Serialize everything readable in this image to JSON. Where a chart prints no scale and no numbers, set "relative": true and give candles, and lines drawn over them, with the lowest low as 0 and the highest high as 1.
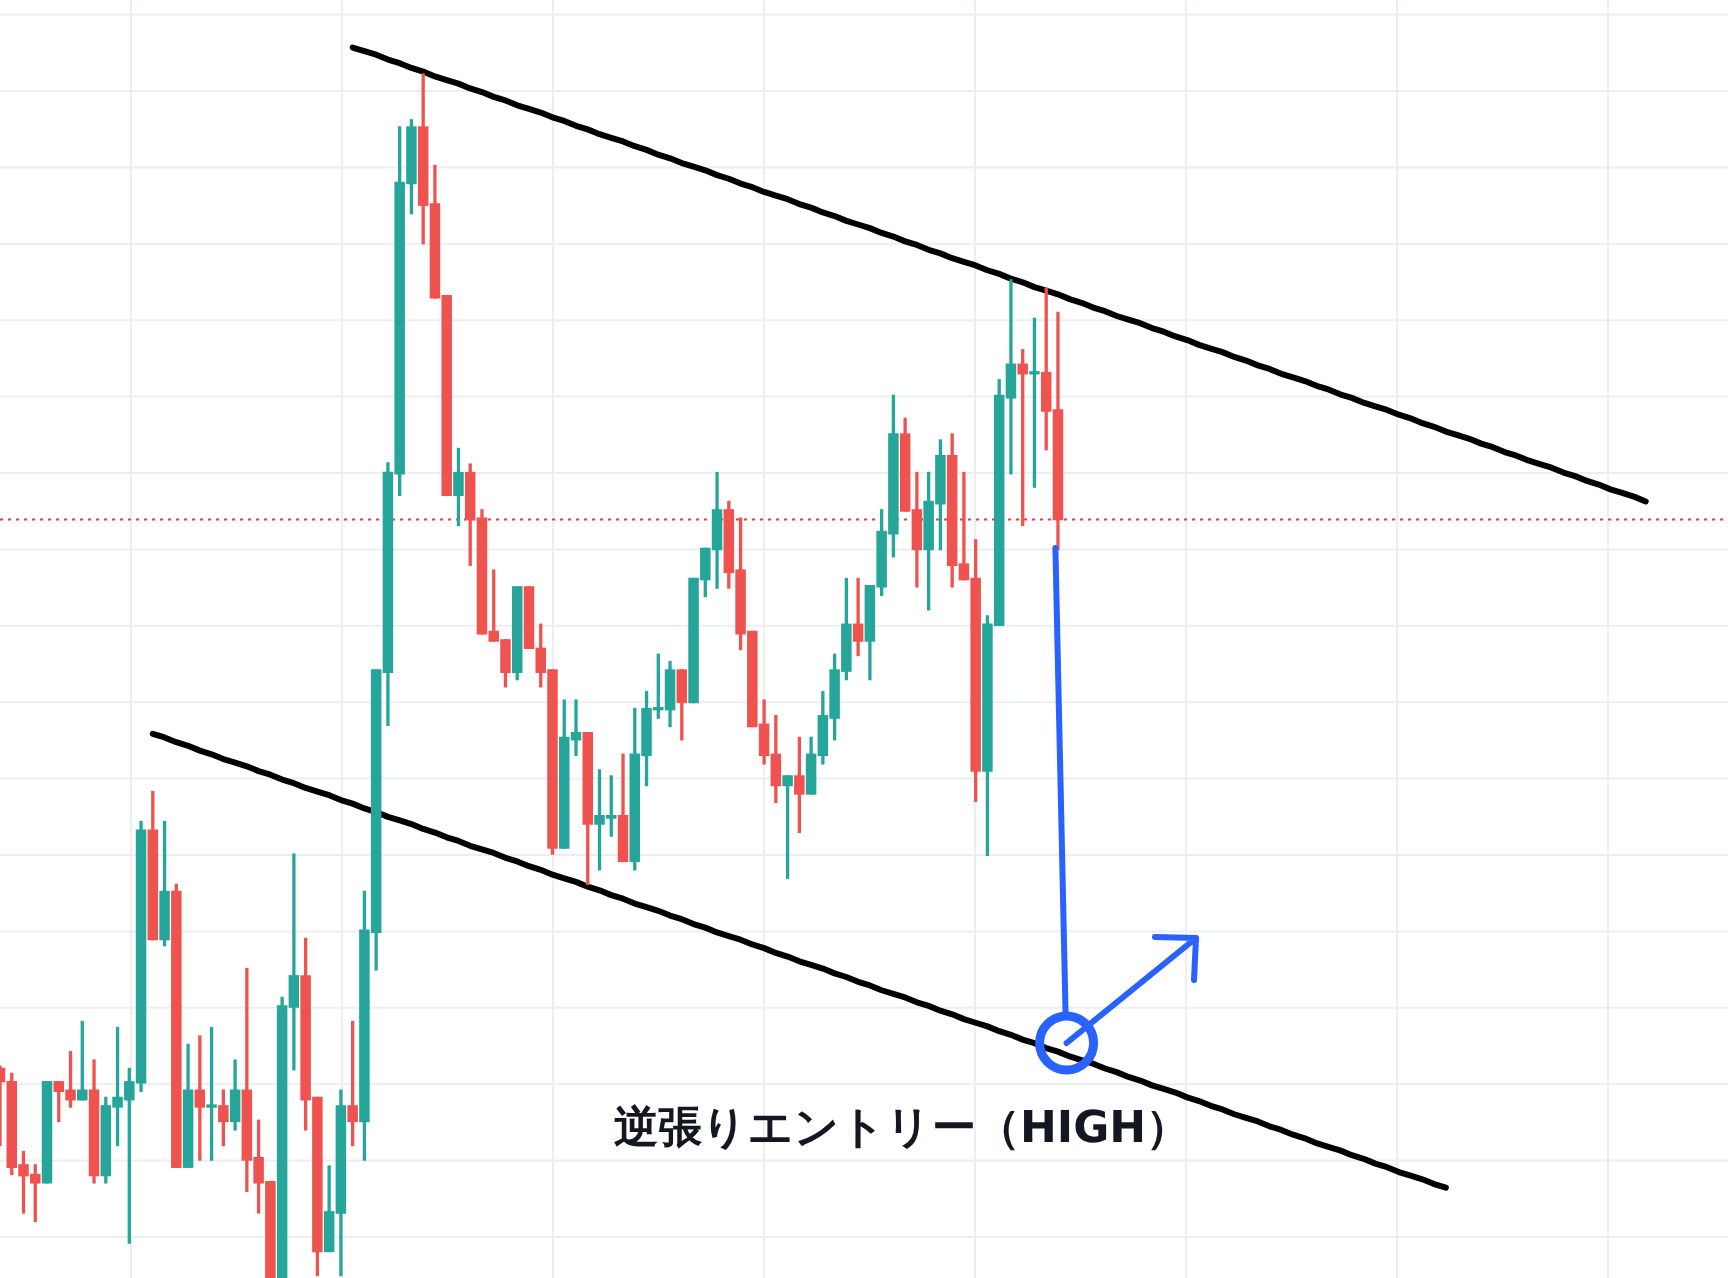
{
  "chart_data": {
    "type": "candlestick",
    "relative": true,
    "grid": true,
    "categories": [
      null,
      null,
      null,
      null,
      null,
      null,
      null,
      null,
      null,
      null,
      null,
      null,
      null,
      null,
      null,
      null,
      null,
      null,
      null,
      null,
      null,
      null,
      null,
      null,
      null,
      null,
      null,
      null,
      null,
      null,
      null,
      null,
      null,
      null,
      null,
      null,
      null,
      null,
      null,
      null,
      null,
      null,
      null,
      null,
      null,
      null,
      null,
      null,
      null,
      null,
      null,
      null,
      null,
      null,
      null,
      null,
      null,
      null,
      null,
      null,
      null,
      null,
      null,
      null,
      null,
      null,
      null,
      null,
      null,
      null,
      null,
      null,
      null,
      null,
      null,
      null,
      null,
      null,
      null,
      null,
      null,
      null,
      null,
      null,
      null,
      null,
      null,
      null,
      null,
      null,
      null,
      null,
      null,
      null,
      null,
      null,
      null,
      null,
      null,
      null,
      null,
      null,
      null,
      null,
      null,
      null,
      null,
      null,
      null,
      null,
      null,
      null,
      null,
      null,
      null,
      null,
      null,
      null,
      null,
      null,
      null,
      null,
      null,
      null,
      null,
      null,
      null,
      null,
      null,
      null,
      null,
      null,
      null,
      null,
      null,
      null,
      null,
      null,
      null,
      null,
      null,
      null,
      null,
      null,
      null,
      null,
      null,
      null
    ],
    "ohlc": [
      [
        0.174,
        0.176,
        0.11,
        0.163
      ],
      [
        0.163,
        0.17,
        0.086,
        0.092
      ],
      [
        0.094,
        0.105,
        0.054,
        0.085
      ],
      [
        0.086,
        0.094,
        0.047,
        0.079
      ],
      [
        0.079,
        0.163,
        0.079,
        0.163
      ],
      [
        0.163,
        0.163,
        0.13,
        0.155
      ],
      [
        0.156,
        0.188,
        0.142,
        0.148
      ],
      [
        0.148,
        0.213,
        0.148,
        0.156
      ],
      [
        0.156,
        0.181,
        0.079,
        0.085
      ],
      [
        0.085,
        0.15,
        0.079,
        0.143
      ],
      [
        0.142,
        0.208,
        0.11,
        0.15
      ],
      [
        0.148,
        0.174,
        0.029,
        0.163
      ],
      [
        0.162,
        0.379,
        0.155,
        0.372
      ],
      [
        0.372,
        0.404,
        0.281,
        0.281
      ],
      [
        0.281,
        0.379,
        0.276,
        0.321
      ],
      [
        0.321,
        0.327,
        0.092,
        0.092
      ],
      [
        0.092,
        0.194,
        0.092,
        0.156
      ],
      [
        0.156,
        0.201,
        0.098,
        0.142
      ],
      [
        0.142,
        0.208,
        0.098,
        0.143
      ],
      [
        0.143,
        0.156,
        0.11,
        0.13
      ],
      [
        0.13,
        0.181,
        0.123,
        0.156
      ],
      [
        0.156,
        0.257,
        0.072,
        0.098
      ],
      [
        0.1,
        0.131,
        0.054,
        0.079
      ],
      [
        0.08,
        0.08,
        0,
        0
      ],
      [
        0,
        0.233,
        0,
        0.226
      ],
      [
        0.225,
        0.352,
        0.173,
        0.251
      ],
      [
        0.251,
        0.282,
        0.123,
        0.148
      ],
      [
        0.15,
        0.15,
        0.002,
        0.022
      ],
      [
        0.022,
        0.093,
        0.022,
        0.055
      ],
      [
        0.054,
        0.156,
        0.002,
        0.143
      ],
      [
        0.143,
        0.213,
        0.11,
        0.13
      ],
      [
        0.13,
        0.321,
        0.098,
        0.289
      ],
      [
        0.287,
        0.505,
        0.256,
        0.505
      ],
      [
        0.503,
        0.677,
        0.459,
        0.669
      ],
      [
        0.668,
        0.956,
        0.65,
        0.91
      ],
      [
        0.909,
        0.962,
        0.884,
        0.956
      ],
      [
        0.956,
        1,
        0.859,
        0.891
      ],
      [
        0.892,
        0.924,
        0.814,
        0.814
      ],
      [
        0.816,
        0.816,
        0.65,
        0.65
      ],
      [
        0.65,
        0.689,
        0.625,
        0.669
      ],
      [
        0.669,
        0.676,
        0.592,
        0.63
      ],
      [
        0.631,
        0.638,
        0.535,
        0.535
      ],
      [
        0.537,
        0.588,
        0.529,
        0.529
      ],
      [
        0.53,
        0.53,
        0.491,
        0.503
      ],
      [
        0.503,
        0.574,
        0.497,
        0.574
      ],
      [
        0.574,
        0.574,
        0.523,
        0.523
      ],
      [
        0.523,
        0.543,
        0.491,
        0.503
      ],
      [
        0.505,
        0.505,
        0.352,
        0.357
      ],
      [
        0.357,
        0.48,
        0.357,
        0.449
      ],
      [
        0.447,
        0.48,
        0.434,
        0.453
      ],
      [
        0.453,
        0.453,
        0.327,
        0.377
      ],
      [
        0.377,
        0.422,
        0.339,
        0.384
      ],
      [
        0.382,
        0.417,
        0.367,
        0.384
      ],
      [
        0.384,
        0.435,
        0.346,
        0.346
      ],
      [
        0.346,
        0.473,
        0.339,
        0.435
      ],
      [
        0.434,
        0.487,
        0.409,
        0.473
      ],
      [
        0.472,
        0.518,
        0.465,
        0.473
      ],
      [
        0.472,
        0.512,
        0.458,
        0.505
      ],
      [
        0.505,
        0.505,
        0.447,
        0.478
      ],
      [
        0.478,
        0.581,
        0.478,
        0.581
      ],
      [
        0.58,
        0.606,
        0.566,
        0.606
      ],
      [
        0.605,
        0.669,
        0.573,
        0.638
      ],
      [
        0.638,
        0.645,
        0.573,
        0.586
      ],
      [
        0.588,
        0.631,
        0.522,
        0.535
      ],
      [
        0.537,
        0.537,
        0.458,
        0.458
      ],
      [
        0.46,
        0.48,
        0.427,
        0.434
      ],
      [
        0.435,
        0.467,
        0.395,
        0.409
      ],
      [
        0.409,
        0.417,
        0.332,
        0.417
      ],
      [
        0.417,
        0.449,
        0.37,
        0.402
      ],
      [
        0.402,
        0.449,
        0.402,
        0.435
      ],
      [
        0.434,
        0.487,
        0.427,
        0.467
      ],
      [
        0.465,
        0.518,
        0.447,
        0.505
      ],
      [
        0.504,
        0.581,
        0.497,
        0.543
      ],
      [
        0.543,
        0.581,
        0.517,
        0.529
      ],
      [
        0.529,
        0.575,
        0.497,
        0.575
      ],
      [
        0.574,
        0.638,
        0.567,
        0.62
      ],
      [
        0.618,
        0.733,
        0.599,
        0.701
      ],
      [
        0.701,
        0.714,
        0.637,
        0.637
      ],
      [
        0.638,
        0.669,
        0.574,
        0.605
      ],
      [
        0.605,
        0.669,
        0.555,
        0.645
      ],
      [
        0.643,
        0.696,
        0.605,
        0.683
      ],
      [
        0.683,
        0.701,
        0.574,
        0.592
      ],
      [
        0.593,
        0.669,
        0.58,
        0.58
      ],
      [
        0.581,
        0.613,
        0.396,
        0.421
      ],
      [
        0.421,
        0.55,
        0.351,
        0.543
      ],
      [
        0.542,
        0.746,
        0.542,
        0.733
      ],
      [
        0.731,
        0.829,
        0.668,
        0.759
      ],
      [
        0.759,
        0.771,
        0.625,
        0.751
      ],
      [
        0.751,
        0.797,
        0.657,
        0.752
      ],
      [
        0.752,
        0.822,
        0.688,
        0.72
      ],
      [
        0.721,
        0.802,
        0.605,
        0.63
      ],
      null,
      null,
      null,
      null,
      null,
      null,
      null,
      null,
      null,
      null,
      null,
      null,
      null,
      null,
      null,
      null,
      null,
      null,
      null,
      null,
      null,
      null,
      null,
      null,
      null,
      null,
      null,
      null,
      null,
      null,
      null,
      null,
      null,
      null,
      null,
      null,
      null,
      null,
      null,
      null,
      null,
      null,
      null,
      null,
      null,
      null,
      null,
      null,
      null,
      null,
      null,
      null,
      null,
      null,
      null,
      null,
      null
    ],
    "colors": [
      "#ef5350",
      "#ef5350",
      "#ef5350",
      "#ef5350",
      "#26a69a",
      "#ef5350",
      "#ef5350",
      "#26a69a",
      "#ef5350",
      "#26a69a",
      "#26a69a",
      "#26a69a",
      "#26a69a",
      "#ef5350",
      "#26a69a",
      "#ef5350",
      "#26a69a",
      "#ef5350",
      "#26a69a",
      "#ef5350",
      "#26a69a",
      "#ef5350",
      "#ef5350",
      "#ef5350",
      "#26a69a",
      "#26a69a",
      "#ef5350",
      "#ef5350",
      "#26a69a",
      "#26a69a",
      "#ef5350",
      "#26a69a",
      "#26a69a",
      "#26a69a",
      "#26a69a",
      "#26a69a",
      "#ef5350",
      "#ef5350",
      "#ef5350",
      "#26a69a",
      "#ef5350",
      "#ef5350",
      "#ef5350",
      "#ef5350",
      "#26a69a",
      "#ef5350",
      "#ef5350",
      "#ef5350",
      "#26a69a",
      "#26a69a",
      "#ef5350",
      "#26a69a",
      "#26a69a",
      "#ef5350",
      "#26a69a",
      "#26a69a",
      "#26a69a",
      "#26a69a",
      "#ef5350",
      "#26a69a",
      "#26a69a",
      "#26a69a",
      "#ef5350",
      "#ef5350",
      "#ef5350",
      "#ef5350",
      "#ef5350",
      "#26a69a",
      "#ef5350",
      "#26a69a",
      "#26a69a",
      "#26a69a",
      "#26a69a",
      "#ef5350",
      "#26a69a",
      "#26a69a",
      "#26a69a",
      "#ef5350",
      "#ef5350",
      "#26a69a",
      "#26a69a",
      "#ef5350",
      "#ef5350",
      "#ef5350",
      "#26a69a",
      "#26a69a",
      "#26a69a",
      "#ef5350",
      "#26a69a",
      "#ef5350",
      "#ef5350",
      null,
      null,
      null,
      null,
      null,
      null,
      null,
      null,
      null,
      null,
      null,
      null,
      null,
      null,
      null,
      null,
      null,
      null,
      null,
      null,
      null,
      null,
      null,
      null,
      null,
      null,
      null,
      null,
      null,
      null,
      null,
      null,
      null,
      null,
      null,
      null,
      null,
      null,
      null,
      null,
      null,
      null,
      null,
      null,
      null,
      null,
      null,
      null,
      null,
      null,
      null,
      null,
      null,
      null,
      null,
      null,
      null
    ],
    "series": [
      {
        "type": "line",
        "color": "#000000",
        "values": [
          null,
          null,
          null,
          null,
          null,
          null,
          null,
          null,
          null,
          null,
          null,
          null,
          null,
          null,
          null,
          null,
          null,
          null,
          null,
          null,
          null,
          null,
          null,
          null,
          null,
          null,
          null,
          null,
          null,
          null,
          1.022,
          1.019,
          1.016,
          1.012,
          1.009,
          1.005,
          1.002,
          0.998,
          0.995,
          0.992,
          0.988,
          0.985,
          0.981,
          0.978,
          0.974,
          0.971,
          0.968,
          0.964,
          0.961,
          0.957,
          0.954,
          0.95,
          0.947,
          0.944,
          0.94,
          0.937,
          0.933,
          0.93,
          0.926,
          0.923,
          0.92,
          0.916,
          0.913,
          0.909,
          0.906,
          0.902,
          0.899,
          0.896,
          0.892,
          0.889,
          0.885,
          0.882,
          0.878,
          0.875,
          0.872,
          0.868,
          0.865,
          0.861,
          0.858,
          0.854,
          0.851,
          0.847,
          0.844,
          0.841,
          0.837,
          0.834,
          0.83,
          0.827,
          0.823,
          0.82,
          0.817,
          0.813,
          0.81,
          0.806,
          0.803,
          0.799,
          0.796,
          0.793,
          0.789,
          0.786,
          0.782,
          0.779,
          0.775,
          0.772,
          0.769,
          0.765,
          0.762,
          0.758,
          0.755,
          0.751,
          0.748,
          0.745,
          0.741,
          0.738,
          0.734,
          0.731,
          0.727,
          0.724,
          0.721,
          0.717,
          0.714,
          0.71,
          0.707,
          0.703,
          0.7,
          0.697,
          0.693,
          0.69,
          0.686,
          0.683,
          0.679,
          0.676,
          0.673,
          0.669,
          0.666,
          0.662,
          0.659,
          0.655,
          0.652,
          0.649,
          0.645,
          null,
          null,
          null,
          null,
          null,
          null,
          null
        ]
      },
      {
        "type": "line",
        "color": "#000000",
        "values": [
          null,
          null,
          null,
          null,
          null,
          null,
          null,
          null,
          null,
          null,
          null,
          null,
          null,
          0.452,
          0.449,
          0.445,
          0.442,
          0.438,
          0.435,
          0.431,
          0.428,
          0.425,
          0.421,
          0.418,
          0.414,
          0.411,
          0.407,
          0.404,
          0.401,
          0.397,
          0.394,
          0.39,
          0.387,
          0.383,
          0.38,
          0.377,
          0.373,
          0.37,
          0.366,
          0.363,
          0.359,
          0.356,
          0.353,
          0.349,
          0.346,
          0.342,
          0.339,
          0.335,
          0.332,
          0.329,
          0.325,
          0.322,
          0.318,
          0.315,
          0.311,
          0.308,
          0.305,
          0.301,
          0.298,
          0.294,
          0.291,
          0.287,
          0.284,
          0.281,
          0.277,
          0.274,
          0.27,
          0.267,
          0.263,
          0.26,
          0.257,
          0.253,
          0.25,
          0.246,
          0.243,
          0.239,
          0.236,
          0.233,
          0.229,
          0.226,
          0.222,
          0.219,
          0.215,
          0.212,
          0.209,
          0.205,
          0.202,
          0.198,
          0.195,
          0.191,
          0.188,
          0.184,
          0.181,
          0.178,
          0.174,
          0.171,
          0.167,
          0.164,
          0.16,
          0.157,
          0.154,
          0.15,
          0.147,
          0.143,
          0.14,
          0.136,
          0.133,
          0.13,
          0.126,
          0.123,
          0.119,
          0.116,
          0.112,
          0.109,
          0.106,
          0.102,
          0.099,
          0.095,
          0.092,
          0.088,
          0.085,
          0.082,
          0.078,
          0.075,
          null,
          null,
          null,
          null,
          null,
          null,
          null,
          null,
          null,
          null,
          null,
          null,
          null,
          null,
          null,
          null,
          null,
          null,
          null,
          null,
          null,
          null,
          null,
          null
        ]
      }
    ],
    "ref_lines": [
      {
        "axis": "y",
        "value": 0.63,
        "color": "#f23645",
        "line_style": "dotted"
      }
    ],
    "annotations": [
      "逆張りエントリー（HIGH）"
    ]
  }
}
